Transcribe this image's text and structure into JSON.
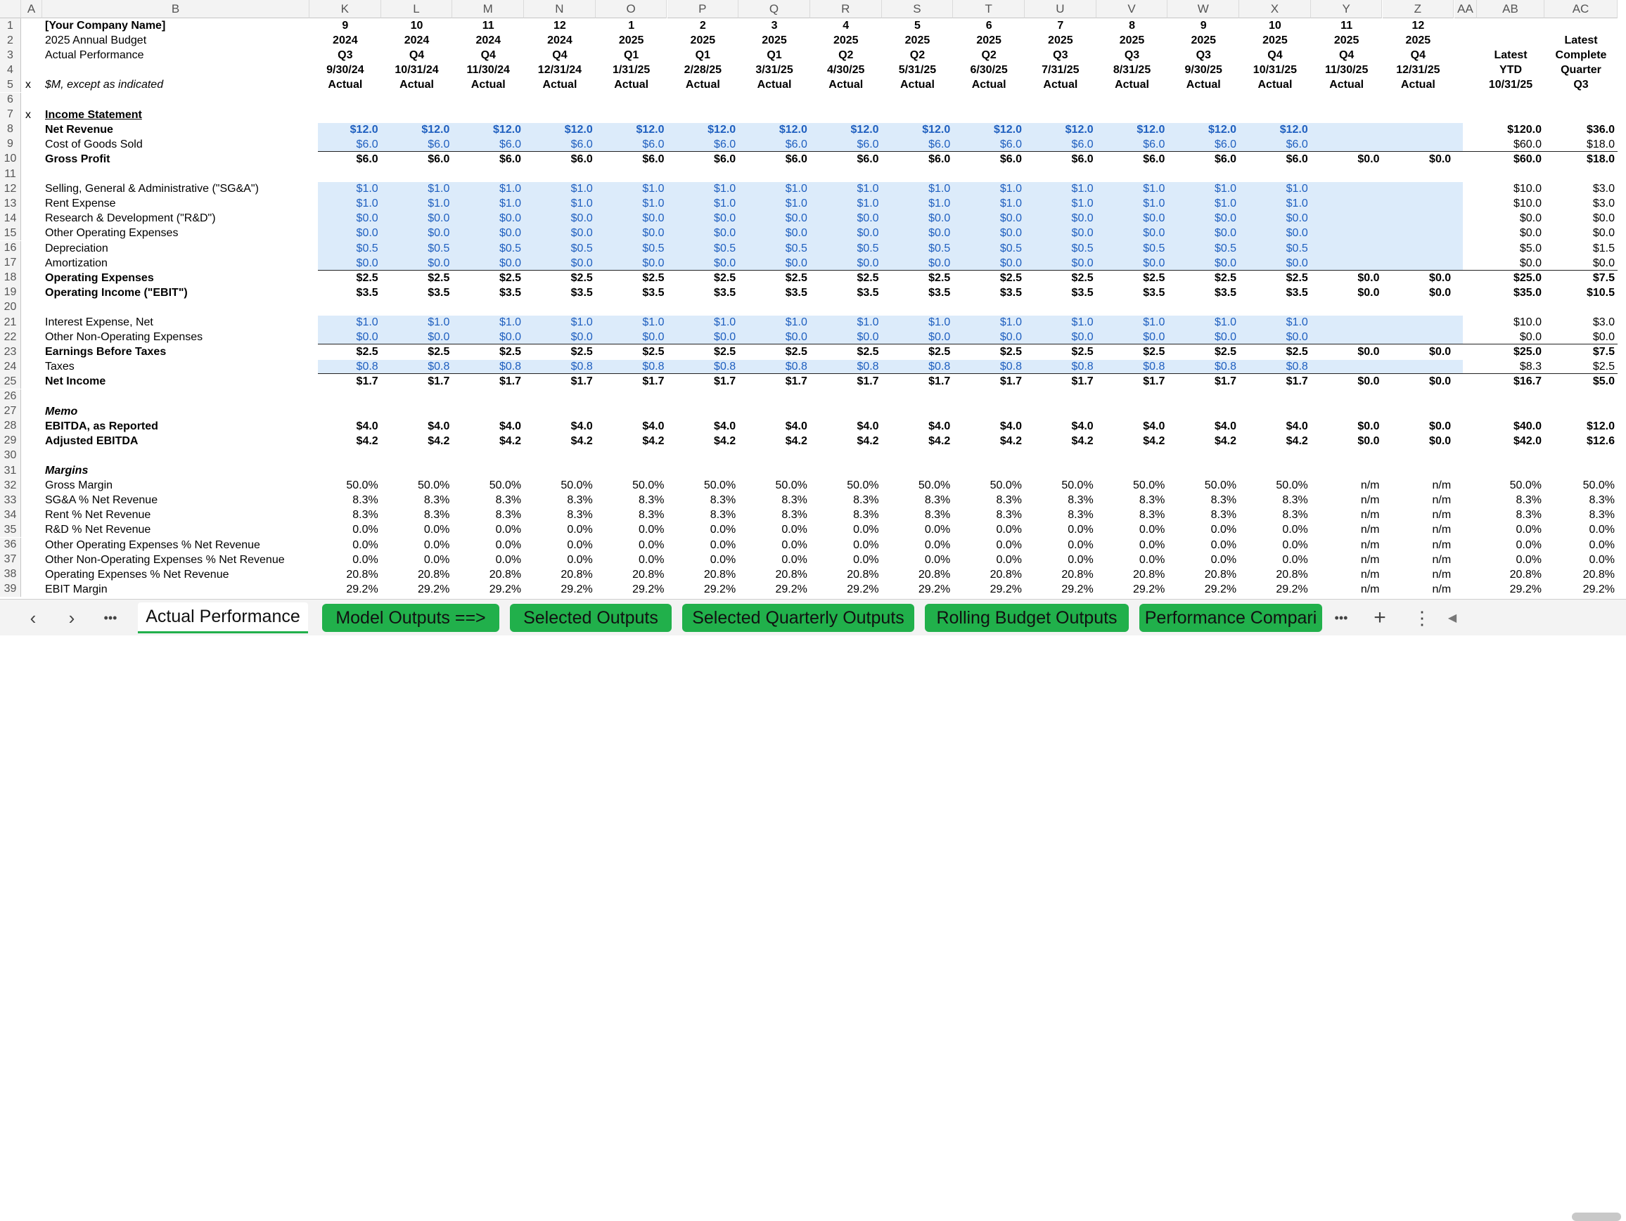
{
  "columns": [
    "A",
    "B",
    "K",
    "L",
    "M",
    "N",
    "O",
    "P",
    "Q",
    "R",
    "S",
    "T",
    "U",
    "V",
    "W",
    "X",
    "Y",
    "Z",
    "AA",
    "AB",
    "AC"
  ],
  "labels": {
    "1": {
      "text": "[Your Company Name]",
      "bold": true
    },
    "2": {
      "text": "2025 Annual Budget"
    },
    "3": {
      "text": "Actual Performance"
    },
    "5": {
      "text": "$M, except as indicated",
      "italic": true,
      "a": "x"
    },
    "7": {
      "text": "Income Statement",
      "bold": true,
      "underline": true,
      "a": "x"
    },
    "8": {
      "text": "Net Revenue",
      "bold": true
    },
    "9": {
      "text": "Cost of Goods Sold"
    },
    "10": {
      "text": "Gross Profit",
      "bold": true
    },
    "12": {
      "text": "Selling, General & Administrative (\"SG&A\")"
    },
    "13": {
      "text": "Rent Expense"
    },
    "14": {
      "text": "Research & Development (\"R&D\")"
    },
    "15": {
      "text": "Other Operating Expenses"
    },
    "16": {
      "text": "Depreciation"
    },
    "17": {
      "text": "Amortization"
    },
    "18": {
      "text": "Operating Expenses",
      "bold": true
    },
    "19": {
      "text": "Operating Income (\"EBIT\")",
      "bold": true
    },
    "21": {
      "text": "Interest Expense, Net"
    },
    "22": {
      "text": "Other Non-Operating Expenses"
    },
    "23": {
      "text": "Earnings Before Taxes",
      "bold": true
    },
    "24": {
      "text": "Taxes"
    },
    "25": {
      "text": "Net Income",
      "bold": true
    },
    "27": {
      "text": "Memo",
      "bold": true,
      "italic": true
    },
    "28": {
      "text": "EBITDA, as Reported",
      "bold": true
    },
    "29": {
      "text": "Adjusted EBITDA",
      "bold": true
    },
    "31": {
      "text": "Margins",
      "bold": true,
      "italic": true
    },
    "32": {
      "text": "Gross Margin"
    },
    "33": {
      "text": "SG&A % Net Revenue"
    },
    "34": {
      "text": "Rent % Net Revenue"
    },
    "35": {
      "text": "R&D % Net Revenue"
    },
    "36": {
      "text": "Other Operating Expenses % Net Revenue"
    },
    "37": {
      "text": "Other Non-Operating Expenses % Net Revenue"
    },
    "38": {
      "text": "Operating Expenses % Net Revenue"
    },
    "39": {
      "text": "EBIT Margin"
    }
  },
  "period_headers": {
    "month": [
      "9",
      "10",
      "11",
      "12",
      "1",
      "2",
      "3",
      "4",
      "5",
      "6",
      "7",
      "8",
      "9",
      "10",
      "11",
      "12"
    ],
    "year": [
      "2024",
      "2024",
      "2024",
      "2024",
      "2025",
      "2025",
      "2025",
      "2025",
      "2025",
      "2025",
      "2025",
      "2025",
      "2025",
      "2025",
      "2025",
      "2025"
    ],
    "quarter": [
      "Q3",
      "Q4",
      "Q4",
      "Q4",
      "Q1",
      "Q1",
      "Q1",
      "Q2",
      "Q2",
      "Q2",
      "Q3",
      "Q3",
      "Q3",
      "Q4",
      "Q4",
      "Q4"
    ],
    "date": [
      "9/30/24",
      "10/31/24",
      "11/30/24",
      "12/31/24",
      "1/31/25",
      "2/28/25",
      "3/31/25",
      "4/30/25",
      "5/31/25",
      "6/30/25",
      "7/31/25",
      "8/31/25",
      "9/30/25",
      "10/31/25",
      "11/30/25",
      "12/31/25"
    ],
    "status": "Actual"
  },
  "summary_headers": {
    "ab": [
      "Latest",
      "YTD",
      "10/31/25"
    ],
    "ac": [
      "Latest",
      "Complete",
      "Quarter",
      "Q3"
    ]
  },
  "rows": {
    "8": {
      "m": "$12.0",
      "tail": [
        "",
        ""
      ],
      "ab": "$120.0",
      "ac": "$36.0",
      "bold": true,
      "blue": true
    },
    "9": {
      "m": "$6.0",
      "tail": [
        "",
        ""
      ],
      "ab": "$60.0",
      "ac": "$18.0",
      "blue": true,
      "line": true
    },
    "10": {
      "m": "$6.0",
      "tail": [
        "$0.0",
        "$0.0"
      ],
      "ab": "$60.0",
      "ac": "$18.0",
      "bold": true
    },
    "12": {
      "m": "$1.0",
      "tail": [
        "",
        ""
      ],
      "ab": "$10.0",
      "ac": "$3.0",
      "blue": true
    },
    "13": {
      "m": "$1.0",
      "tail": [
        "",
        ""
      ],
      "ab": "$10.0",
      "ac": "$3.0",
      "blue": true
    },
    "14": {
      "m": "$0.0",
      "tail": [
        "",
        ""
      ],
      "ab": "$0.0",
      "ac": "$0.0",
      "blue": true
    },
    "15": {
      "m": "$0.0",
      "tail": [
        "",
        ""
      ],
      "ab": "$0.0",
      "ac": "$0.0",
      "blue": true
    },
    "16": {
      "m": "$0.5",
      "tail": [
        "",
        ""
      ],
      "ab": "$5.0",
      "ac": "$1.5",
      "blue": true
    },
    "17": {
      "m": "$0.0",
      "tail": [
        "",
        ""
      ],
      "ab": "$0.0",
      "ac": "$0.0",
      "blue": true,
      "line": true
    },
    "18": {
      "m": "$2.5",
      "tail": [
        "$0.0",
        "$0.0"
      ],
      "ab": "$25.0",
      "ac": "$7.5",
      "bold": true
    },
    "19": {
      "m": "$3.5",
      "tail": [
        "$0.0",
        "$0.0"
      ],
      "ab": "$35.0",
      "ac": "$10.5",
      "bold": true
    },
    "21": {
      "m": "$1.0",
      "tail": [
        "",
        ""
      ],
      "ab": "$10.0",
      "ac": "$3.0",
      "blue": true
    },
    "22": {
      "m": "$0.0",
      "tail": [
        "",
        ""
      ],
      "ab": "$0.0",
      "ac": "$0.0",
      "blue": true,
      "line": true
    },
    "23": {
      "m": "$2.5",
      "tail": [
        "$0.0",
        "$0.0"
      ],
      "ab": "$25.0",
      "ac": "$7.5",
      "bold": true
    },
    "24": {
      "m": "$0.8",
      "tail": [
        "",
        ""
      ],
      "ab": "$8.3",
      "ac": "$2.5",
      "blue": true,
      "line": true
    },
    "25": {
      "m": "$1.7",
      "tail": [
        "$0.0",
        "$0.0"
      ],
      "ab": "$16.7",
      "ac": "$5.0",
      "bold": true
    },
    "28": {
      "m": "$4.0",
      "tail": [
        "$0.0",
        "$0.0"
      ],
      "ab": "$40.0",
      "ac": "$12.0",
      "bold": true
    },
    "29": {
      "m": "$4.2",
      "tail": [
        "$0.0",
        "$0.0"
      ],
      "ab": "$42.0",
      "ac": "$12.6",
      "bold": true
    },
    "32": {
      "m": "50.0%",
      "tail": [
        "n/m",
        "n/m"
      ],
      "ab": "50.0%",
      "ac": "50.0%"
    },
    "33": {
      "m": "8.3%",
      "tail": [
        "n/m",
        "n/m"
      ],
      "ab": "8.3%",
      "ac": "8.3%"
    },
    "34": {
      "m": "8.3%",
      "tail": [
        "n/m",
        "n/m"
      ],
      "ab": "8.3%",
      "ac": "8.3%"
    },
    "35": {
      "m": "0.0%",
      "tail": [
        "n/m",
        "n/m"
      ],
      "ab": "0.0%",
      "ac": "0.0%"
    },
    "36": {
      "m": "0.0%",
      "tail": [
        "n/m",
        "n/m"
      ],
      "ab": "0.0%",
      "ac": "0.0%"
    },
    "37": {
      "m": "0.0%",
      "tail": [
        "n/m",
        "n/m"
      ],
      "ab": "0.0%",
      "ac": "0.0%"
    },
    "38": {
      "m": "20.8%",
      "tail": [
        "n/m",
        "n/m"
      ],
      "ab": "20.8%",
      "ac": "20.8%"
    },
    "39": {
      "m": "29.2%",
      "tail": [
        "n/m",
        "n/m"
      ],
      "ab": "29.2%",
      "ac": "29.2%"
    }
  },
  "tabs": [
    {
      "label": "Actual Performance",
      "style": "active"
    },
    {
      "label": "Model Outputs ==>",
      "style": "green"
    },
    {
      "label": "Selected Outputs",
      "style": "green"
    },
    {
      "label": "Selected Quarterly Outputs",
      "style": "green"
    },
    {
      "label": "Rolling Budget Outputs",
      "style": "green"
    },
    {
      "label": "Performance Compari",
      "style": "green"
    }
  ],
  "nav": {
    "prev": "‹",
    "next": "›",
    "more": "•••",
    "add": "+",
    "menu": "⋮",
    "scroll_left": "◀"
  },
  "colors": {
    "input_fill": "#dcebfa",
    "input_text": "#1f5fbf",
    "tab_green": "#21b04b"
  }
}
